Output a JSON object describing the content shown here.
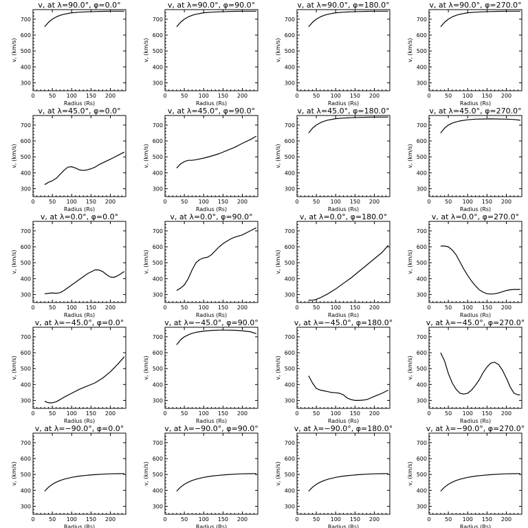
{
  "chart_data": [
    {
      "type": "line",
      "title": "v, at λ=90.0°, φ=0.0°",
      "xlabel": "Radius (Rs)",
      "ylabel": "v, (km/s)",
      "xlim": [
        0,
        240
      ],
      "ylim": [
        250,
        760
      ],
      "xticks": [
        0,
        50,
        100,
        150,
        200
      ],
      "yticks": [
        300,
        400,
        500,
        600,
        700
      ],
      "x": [
        30,
        40,
        50,
        60,
        70,
        80,
        100,
        120,
        140,
        160,
        180,
        200,
        220,
        236
      ],
      "y": [
        652,
        680,
        700,
        714,
        724,
        731,
        740,
        744,
        746,
        748,
        749,
        750,
        750,
        750
      ]
    },
    {
      "type": "line",
      "title": "v, at λ=90.0°, φ=90.0°",
      "xlabel": "Radius (Rs)",
      "ylabel": "v, (km/s)",
      "xlim": [
        0,
        240
      ],
      "ylim": [
        250,
        760
      ],
      "xticks": [
        0,
        50,
        100,
        150,
        200
      ],
      "yticks": [
        300,
        400,
        500,
        600,
        700
      ],
      "x": [
        30,
        40,
        50,
        60,
        70,
        80,
        100,
        120,
        140,
        160,
        180,
        200,
        220,
        236
      ],
      "y": [
        652,
        680,
        700,
        714,
        724,
        731,
        740,
        744,
        746,
        748,
        749,
        750,
        750,
        750
      ]
    },
    {
      "type": "line",
      "title": "v, at λ=90.0°, φ=180.0°",
      "xlabel": "Radius (Rs)",
      "ylabel": "v, (km/s)",
      "xlim": [
        0,
        240
      ],
      "ylim": [
        250,
        760
      ],
      "xticks": [
        0,
        50,
        100,
        150,
        200
      ],
      "yticks": [
        300,
        400,
        500,
        600,
        700
      ],
      "x": [
        30,
        40,
        50,
        60,
        70,
        80,
        100,
        120,
        140,
        160,
        180,
        200,
        220,
        236
      ],
      "y": [
        652,
        680,
        700,
        714,
        724,
        731,
        740,
        744,
        746,
        748,
        749,
        750,
        750,
        750
      ]
    },
    {
      "type": "line",
      "title": "v, at λ=90.0°, φ=270.0°",
      "xlabel": "Radius (Rs)",
      "ylabel": "v, (km/s)",
      "xlim": [
        0,
        240
      ],
      "ylim": [
        250,
        760
      ],
      "xticks": [
        0,
        50,
        100,
        150,
        200
      ],
      "yticks": [
        300,
        400,
        500,
        600,
        700
      ],
      "x": [
        30,
        40,
        50,
        60,
        70,
        80,
        100,
        120,
        140,
        160,
        180,
        200,
        220,
        236
      ],
      "y": [
        652,
        680,
        700,
        714,
        724,
        731,
        740,
        744,
        746,
        748,
        749,
        750,
        750,
        750
      ]
    },
    {
      "type": "line",
      "title": "v, at λ=45.0°, φ=0.0°",
      "xlabel": "Radius (Rs)",
      "ylabel": "v, (km/s)",
      "xlim": [
        0,
        240
      ],
      "ylim": [
        250,
        760
      ],
      "xticks": [
        0,
        50,
        100,
        150,
        200
      ],
      "yticks": [
        300,
        400,
        500,
        600,
        700
      ],
      "x": [
        30,
        40,
        50,
        60,
        70,
        80,
        90,
        100,
        110,
        120,
        130,
        140,
        150,
        160,
        170,
        180,
        200,
        220,
        236
      ],
      "y": [
        325,
        340,
        350,
        365,
        390,
        415,
        435,
        438,
        430,
        418,
        415,
        418,
        425,
        435,
        450,
        462,
        485,
        510,
        530
      ]
    },
    {
      "type": "line",
      "title": "v, at λ=45.0°, φ=90.0°",
      "xlabel": "Radius (Rs)",
      "ylabel": "v, (km/s)",
      "xlim": [
        0,
        240
      ],
      "ylim": [
        250,
        760
      ],
      "xticks": [
        0,
        50,
        100,
        150,
        200
      ],
      "yticks": [
        300,
        400,
        500,
        600,
        700
      ],
      "x": [
        30,
        40,
        50,
        60,
        70,
        80,
        100,
        120,
        140,
        160,
        180,
        200,
        220,
        236
      ],
      "y": [
        430,
        455,
        470,
        478,
        478,
        482,
        492,
        505,
        520,
        540,
        560,
        585,
        608,
        630
      ]
    },
    {
      "type": "line",
      "title": "v, at λ=45.0°, φ=180.0°",
      "xlabel": "Radius (Rs)",
      "ylabel": "v, (km/s)",
      "xlim": [
        0,
        240
      ],
      "ylim": [
        250,
        760
      ],
      "xticks": [
        0,
        50,
        100,
        150,
        200
      ],
      "yticks": [
        300,
        400,
        500,
        600,
        700
      ],
      "x": [
        30,
        40,
        50,
        60,
        70,
        80,
        100,
        120,
        140,
        160,
        180,
        200,
        220,
        236
      ],
      "y": [
        650,
        680,
        700,
        714,
        724,
        731,
        740,
        744,
        746,
        748,
        749,
        750,
        750,
        750
      ]
    },
    {
      "type": "line",
      "title": "v, at λ=45.0°, φ=270.0°",
      "xlabel": "Radius (Rs)",
      "ylabel": "v, (km/s)",
      "xlim": [
        0,
        240
      ],
      "ylim": [
        250,
        760
      ],
      "xticks": [
        0,
        50,
        100,
        150,
        200
      ],
      "yticks": [
        300,
        400,
        500,
        600,
        700
      ],
      "x": [
        30,
        40,
        50,
        60,
        70,
        80,
        100,
        120,
        140,
        160,
        180,
        200,
        220,
        236
      ],
      "y": [
        650,
        680,
        700,
        712,
        720,
        726,
        733,
        737,
        738,
        739,
        738,
        737,
        735,
        730
      ]
    },
    {
      "type": "line",
      "title": "v, at λ=0.0°, φ=0.0°",
      "xlabel": "Radius (Rs)",
      "ylabel": "v, (km/s)",
      "xlim": [
        0,
        240
      ],
      "ylim": [
        250,
        760
      ],
      "xticks": [
        0,
        50,
        100,
        150,
        200
      ],
      "yticks": [
        300,
        400,
        500,
        600,
        700
      ],
      "x": [
        30,
        40,
        50,
        60,
        70,
        80,
        100,
        120,
        140,
        160,
        170,
        180,
        190,
        200,
        210,
        220,
        236
      ],
      "y": [
        305,
        308,
        310,
        308,
        312,
        325,
        360,
        395,
        430,
        455,
        455,
        445,
        425,
        410,
        408,
        420,
        445
      ]
    },
    {
      "type": "line",
      "title": "v, at λ=0.0°, φ=90.0°",
      "xlabel": "Radius (Rs)",
      "ylabel": "v, (km/s)",
      "xlim": [
        0,
        240
      ],
      "ylim": [
        250,
        760
      ],
      "xticks": [
        0,
        50,
        100,
        150,
        200
      ],
      "yticks": [
        300,
        400,
        500,
        600,
        700
      ],
      "x": [
        30,
        40,
        50,
        60,
        70,
        80,
        90,
        100,
        110,
        120,
        130,
        140,
        150,
        160,
        170,
        180,
        190,
        200,
        220,
        236
      ],
      "y": [
        325,
        340,
        360,
        400,
        455,
        500,
        520,
        530,
        535,
        550,
        575,
        600,
        620,
        635,
        650,
        660,
        668,
        675,
        700,
        720
      ]
    },
    {
      "type": "line",
      "title": "v, at λ=0.0°, φ=180.0°",
      "xlabel": "Radius (Rs)",
      "ylabel": "v, (km/s)",
      "xlim": [
        0,
        240
      ],
      "ylim": [
        250,
        760
      ],
      "xticks": [
        0,
        50,
        100,
        150,
        200
      ],
      "yticks": [
        300,
        400,
        500,
        600,
        700
      ],
      "x": [
        30,
        40,
        50,
        60,
        80,
        100,
        120,
        140,
        160,
        180,
        200,
        220,
        236
      ],
      "y": [
        265,
        264,
        270,
        280,
        305,
        335,
        370,
        405,
        445,
        485,
        525,
        565,
        610
      ]
    },
    {
      "type": "line",
      "title": "v, at λ=0.0°, φ=270.0°",
      "xlabel": "Radius (Rs)",
      "ylabel": "v, (km/s)",
      "xlim": [
        0,
        240
      ],
      "ylim": [
        250,
        760
      ],
      "xticks": [
        0,
        50,
        100,
        150,
        200
      ],
      "yticks": [
        300,
        400,
        500,
        600,
        700
      ],
      "x": [
        30,
        40,
        50,
        60,
        70,
        80,
        90,
        100,
        110,
        120,
        130,
        140,
        150,
        160,
        170,
        180,
        190,
        200,
        210,
        220,
        236
      ],
      "y": [
        605,
        605,
        600,
        580,
        550,
        505,
        460,
        420,
        385,
        355,
        330,
        315,
        305,
        303,
        305,
        310,
        318,
        325,
        330,
        332,
        332
      ]
    },
    {
      "type": "line",
      "title": "v, at λ=−45.0°, φ=0.0°",
      "xlabel": "Radius (Rs)",
      "ylabel": "v, (km/s)",
      "xlim": [
        0,
        240
      ],
      "ylim": [
        250,
        760
      ],
      "xticks": [
        0,
        50,
        100,
        150,
        200
      ],
      "yticks": [
        300,
        400,
        500,
        600,
        700
      ],
      "x": [
        30,
        40,
        50,
        60,
        70,
        80,
        100,
        120,
        140,
        160,
        180,
        200,
        220,
        236
      ],
      "y": [
        295,
        285,
        285,
        292,
        305,
        320,
        345,
        370,
        390,
        410,
        440,
        480,
        530,
        575
      ]
    },
    {
      "type": "line",
      "title": "v, at λ=−45.0°, φ=90.0°",
      "xlabel": "Radius (Rs)",
      "ylabel": "v, (km/s)",
      "xlim": [
        0,
        240
      ],
      "ylim": [
        250,
        760
      ],
      "xticks": [
        0,
        50,
        100,
        150,
        200
      ],
      "yticks": [
        300,
        400,
        500,
        600,
        700
      ],
      "x": [
        30,
        40,
        50,
        60,
        70,
        80,
        100,
        120,
        140,
        160,
        180,
        200,
        220,
        236
      ],
      "y": [
        650,
        680,
        700,
        712,
        722,
        728,
        736,
        740,
        742,
        742,
        741,
        738,
        732,
        720
      ]
    },
    {
      "type": "line",
      "title": "v, at λ=−45.0°, φ=180.0°",
      "xlabel": "Radius (Rs)",
      "ylabel": "v, (km/s)",
      "xlim": [
        0,
        240
      ],
      "ylim": [
        250,
        760
      ],
      "xticks": [
        0,
        50,
        100,
        150,
        200
      ],
      "yticks": [
        300,
        400,
        500,
        600,
        700
      ],
      "x": [
        30,
        40,
        50,
        60,
        70,
        80,
        90,
        100,
        110,
        120,
        130,
        140,
        150,
        160,
        170,
        180,
        190,
        200,
        210,
        220,
        236
      ],
      "y": [
        455,
        410,
        375,
        365,
        360,
        355,
        350,
        348,
        345,
        335,
        315,
        305,
        300,
        300,
        302,
        305,
        315,
        325,
        335,
        345,
        365
      ]
    },
    {
      "type": "line",
      "title": "v, at λ=−45.0°, φ=270.0°",
      "xlabel": "Radius (Rs)",
      "ylabel": "v, (km/s)",
      "xlim": [
        0,
        240
      ],
      "ylim": [
        250,
        760
      ],
      "xticks": [
        0,
        50,
        100,
        150,
        200
      ],
      "yticks": [
        300,
        400,
        500,
        600,
        700
      ],
      "x": [
        30,
        40,
        50,
        60,
        70,
        80,
        90,
        100,
        110,
        120,
        130,
        140,
        150,
        160,
        170,
        180,
        190,
        200,
        210,
        220,
        230,
        236
      ],
      "y": [
        600,
        550,
        470,
        410,
        370,
        345,
        340,
        345,
        365,
        395,
        430,
        475,
        510,
        535,
        540,
        525,
        490,
        440,
        385,
        345,
        335,
        335
      ]
    },
    {
      "type": "line",
      "title": "v, at λ=−90.0°, φ=0.0°",
      "xlabel": "Radius (Rs)",
      "ylabel": "v, (km/s)",
      "xlim": [
        0,
        240
      ],
      "ylim": [
        250,
        760
      ],
      "xticks": [
        0,
        50,
        100,
        150,
        200
      ],
      "yticks": [
        300,
        400,
        500,
        600,
        700
      ],
      "x": [
        30,
        40,
        50,
        60,
        70,
        80,
        100,
        120,
        140,
        160,
        180,
        200,
        220,
        236
      ],
      "y": [
        395,
        420,
        438,
        452,
        462,
        470,
        482,
        490,
        495,
        499,
        502,
        504,
        505,
        506
      ]
    },
    {
      "type": "line",
      "title": "v, at λ=−90.0°, φ=90.0°",
      "xlabel": "Radius (Rs)",
      "ylabel": "v, (km/s)",
      "xlim": [
        0,
        240
      ],
      "ylim": [
        250,
        760
      ],
      "xticks": [
        0,
        50,
        100,
        150,
        200
      ],
      "yticks": [
        300,
        400,
        500,
        600,
        700
      ],
      "x": [
        30,
        40,
        50,
        60,
        70,
        80,
        100,
        120,
        140,
        160,
        180,
        200,
        220,
        236
      ],
      "y": [
        395,
        420,
        438,
        452,
        462,
        470,
        482,
        490,
        495,
        499,
        502,
        504,
        505,
        506
      ]
    },
    {
      "type": "line",
      "title": "v, at λ=−90.0°, φ=180.0°",
      "xlabel": "Radius (Rs)",
      "ylabel": "v, (km/s)",
      "xlim": [
        0,
        240
      ],
      "ylim": [
        250,
        760
      ],
      "xticks": [
        0,
        50,
        100,
        150,
        200
      ],
      "yticks": [
        300,
        400,
        500,
        600,
        700
      ],
      "x": [
        30,
        40,
        50,
        60,
        70,
        80,
        100,
        120,
        140,
        160,
        180,
        200,
        220,
        236
      ],
      "y": [
        395,
        420,
        438,
        452,
        462,
        470,
        482,
        490,
        495,
        499,
        502,
        504,
        505,
        506
      ]
    },
    {
      "type": "line",
      "title": "v, at λ=−90.0°, φ=270.0°",
      "xlabel": "Radius (Rs)",
      "ylabel": "v, (km/s)",
      "xlim": [
        0,
        240
      ],
      "ylim": [
        250,
        760
      ],
      "xticks": [
        0,
        50,
        100,
        150,
        200
      ],
      "yticks": [
        300,
        400,
        500,
        600,
        700
      ],
      "x": [
        30,
        40,
        50,
        60,
        70,
        80,
        100,
        120,
        140,
        160,
        180,
        200,
        220,
        236
      ],
      "y": [
        395,
        420,
        438,
        452,
        462,
        470,
        482,
        490,
        495,
        499,
        502,
        504,
        505,
        506
      ]
    }
  ]
}
